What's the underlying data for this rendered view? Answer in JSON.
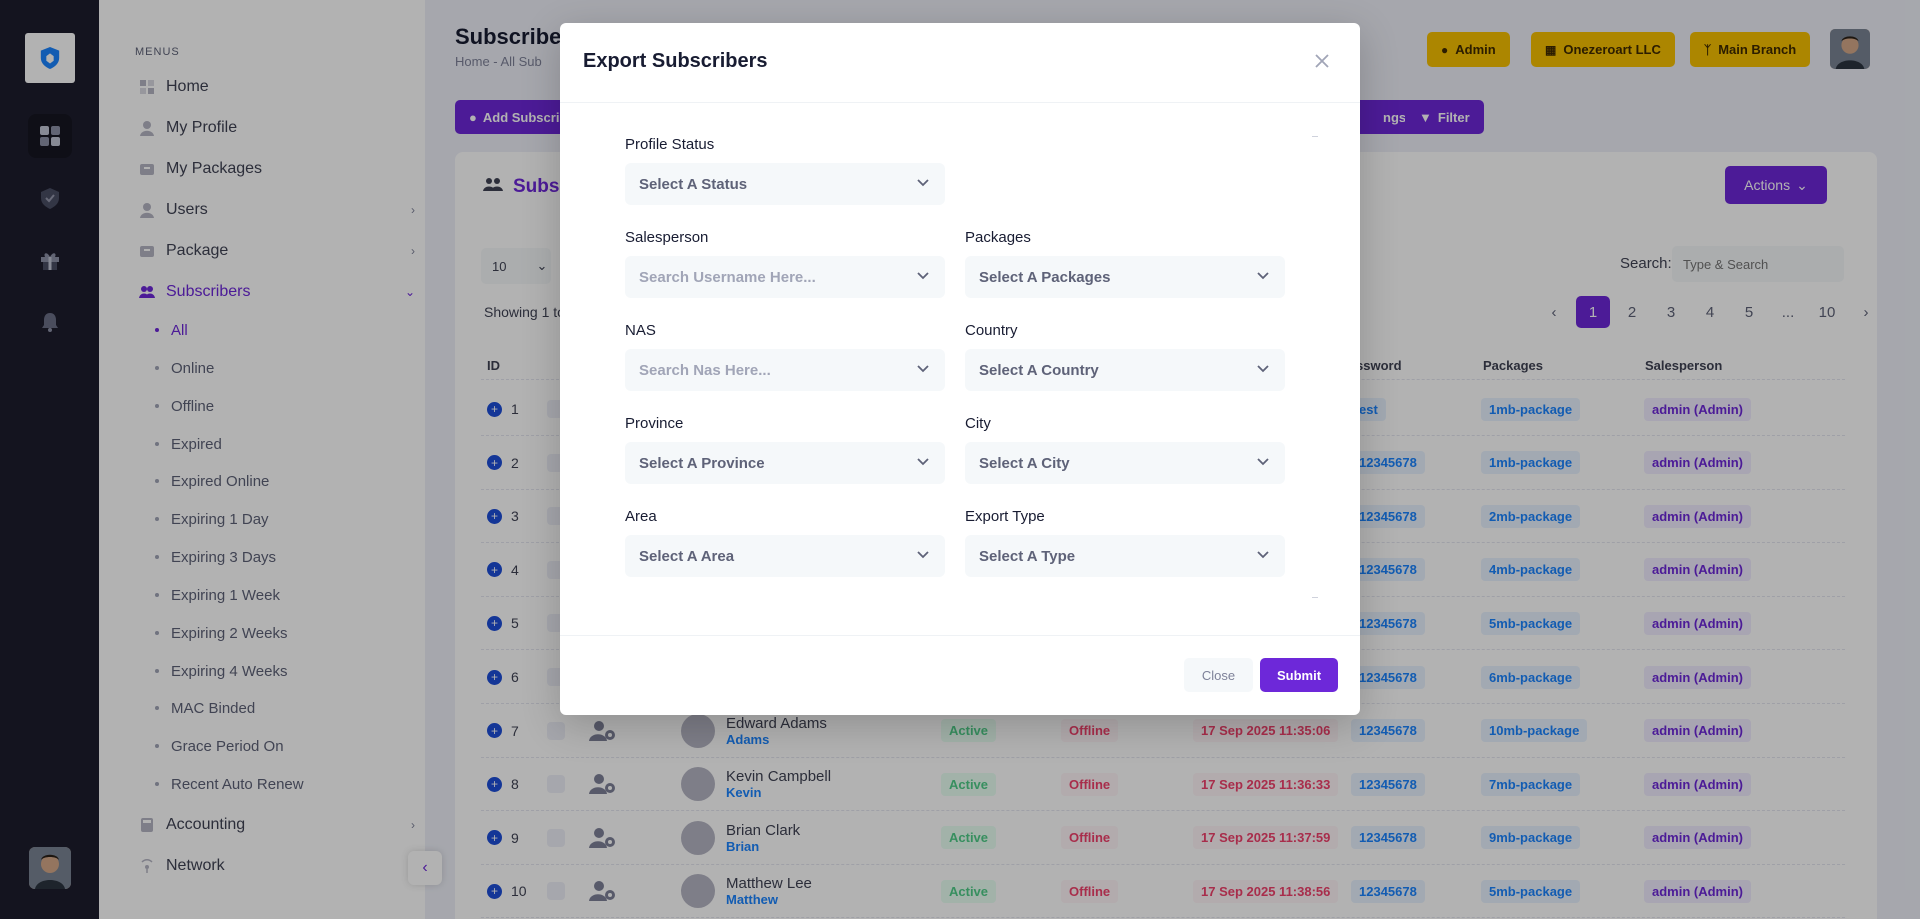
{
  "brand": {
    "logo_text": "Onezeroart LLC"
  },
  "sidebar": {
    "menus_title": "MENUS",
    "items": [
      {
        "label": "Home",
        "icon": "home-icon"
      },
      {
        "label": "My Profile",
        "icon": "user-icon"
      },
      {
        "label": "My Packages",
        "icon": "package-icon"
      },
      {
        "label": "Users",
        "icon": "user-icon"
      },
      {
        "label": "Package",
        "icon": "package-icon"
      },
      {
        "label": "Subscribers",
        "icon": "users-icon"
      },
      {
        "label": "Accounting",
        "icon": "calculator-icon"
      },
      {
        "label": "Network",
        "icon": "network-icon"
      }
    ],
    "subitems": [
      "All",
      "Online",
      "Offline",
      "Expired",
      "Expired Online",
      "Expiring 1 Day",
      "Expiring 3 Days",
      "Expiring 1 Week",
      "Expiring 2 Weeks",
      "Expiring 4 Weeks",
      "MAC Binded",
      "Grace Period On",
      "Recent Auto Renew"
    ]
  },
  "header": {
    "title": "Subscriber",
    "breadcrumb": "Home  -  All Sub",
    "admin_label": "Admin",
    "company_label": "Onezeroart LLC",
    "branch_label": "Main Branch",
    "add_label": "Add Subscri",
    "settings_label": "ngs",
    "filter_label": "Filter"
  },
  "card": {
    "title": "Subsc",
    "actions_label": "Actions",
    "page_length": "10",
    "showing": "Showing 1 to",
    "search_label": "Search:",
    "search_placeholder": "Type & Search",
    "pages": [
      "1",
      "2",
      "3",
      "4",
      "5",
      "...",
      "10"
    ],
    "columns": {
      "id": "ID",
      "password": "ssword",
      "packages": "Packages",
      "salesperson": "Salesperson"
    },
    "rows": [
      {
        "id": "1",
        "name": "",
        "username": "",
        "status": "",
        "online": "",
        "expiry": "",
        "password": "est",
        "package": "1mb-package",
        "salesperson": "admin (Admin)"
      },
      {
        "id": "2",
        "name": "",
        "username": "",
        "status": "",
        "online": "",
        "expiry": "",
        "password": "12345678",
        "package": "1mb-package",
        "salesperson": "admin (Admin)"
      },
      {
        "id": "3",
        "name": "",
        "username": "",
        "status": "",
        "online": "",
        "expiry": "",
        "password": "12345678",
        "package": "2mb-package",
        "salesperson": "admin (Admin)"
      },
      {
        "id": "4",
        "name": "",
        "username": "",
        "status": "",
        "online": "",
        "expiry": "",
        "password": "12345678",
        "package": "4mb-package",
        "salesperson": "admin (Admin)"
      },
      {
        "id": "5",
        "name": "",
        "username": "",
        "status": "",
        "online": "",
        "expiry": "",
        "password": "12345678",
        "package": "5mb-package",
        "salesperson": "admin (Admin)"
      },
      {
        "id": "6",
        "name": "",
        "username": "",
        "status": "",
        "online": "",
        "expiry": "",
        "password": "12345678",
        "package": "6mb-package",
        "salesperson": "admin (Admin)"
      },
      {
        "id": "7",
        "name": "Edward Adams",
        "username": "Adams",
        "status": "Active",
        "online": "Offline",
        "expiry": "17 Sep 2025 11:35:06",
        "password": "12345678",
        "package": "10mb-package",
        "salesperson": "admin (Admin)"
      },
      {
        "id": "8",
        "name": "Kevin Campbell",
        "username": "Kevin",
        "status": "Active",
        "online": "Offline",
        "expiry": "17 Sep 2025 11:36:33",
        "password": "12345678",
        "package": "7mb-package",
        "salesperson": "admin (Admin)"
      },
      {
        "id": "9",
        "name": "Brian Clark",
        "username": "Brian",
        "status": "Active",
        "online": "Offline",
        "expiry": "17 Sep 2025 11:37:59",
        "password": "12345678",
        "package": "9mb-package",
        "salesperson": "admin (Admin)"
      },
      {
        "id": "10",
        "name": "Matthew Lee",
        "username": "Matthew",
        "status": "Active",
        "online": "Offline",
        "expiry": "17 Sep 2025 11:38:56",
        "password": "12345678",
        "package": "5mb-package",
        "salesperson": "admin (Admin)"
      }
    ]
  },
  "modal": {
    "title": "Export Subscribers",
    "fields": {
      "profile_status": {
        "label": "Profile Status",
        "value": "Select A Status"
      },
      "salesperson": {
        "label": "Salesperson",
        "placeholder": "Search Username Here..."
      },
      "packages": {
        "label": "Packages",
        "value": "Select A Packages"
      },
      "nas": {
        "label": "NAS",
        "placeholder": "Search Nas Here..."
      },
      "country": {
        "label": "Country",
        "value": "Select A Country"
      },
      "province": {
        "label": "Province",
        "value": "Select A Province"
      },
      "city": {
        "label": "City",
        "value": "Select A City"
      },
      "area": {
        "label": "Area",
        "value": "Select A Area"
      },
      "export_type": {
        "label": "Export Type",
        "value": "Select A Type"
      }
    },
    "close_label": "Close",
    "submit_label": "Submit"
  },
  "colors": {
    "primary": "#6d28d9",
    "warning": "#f6c000",
    "rail": "#1e1e2d",
    "link": "#1b84ff"
  }
}
